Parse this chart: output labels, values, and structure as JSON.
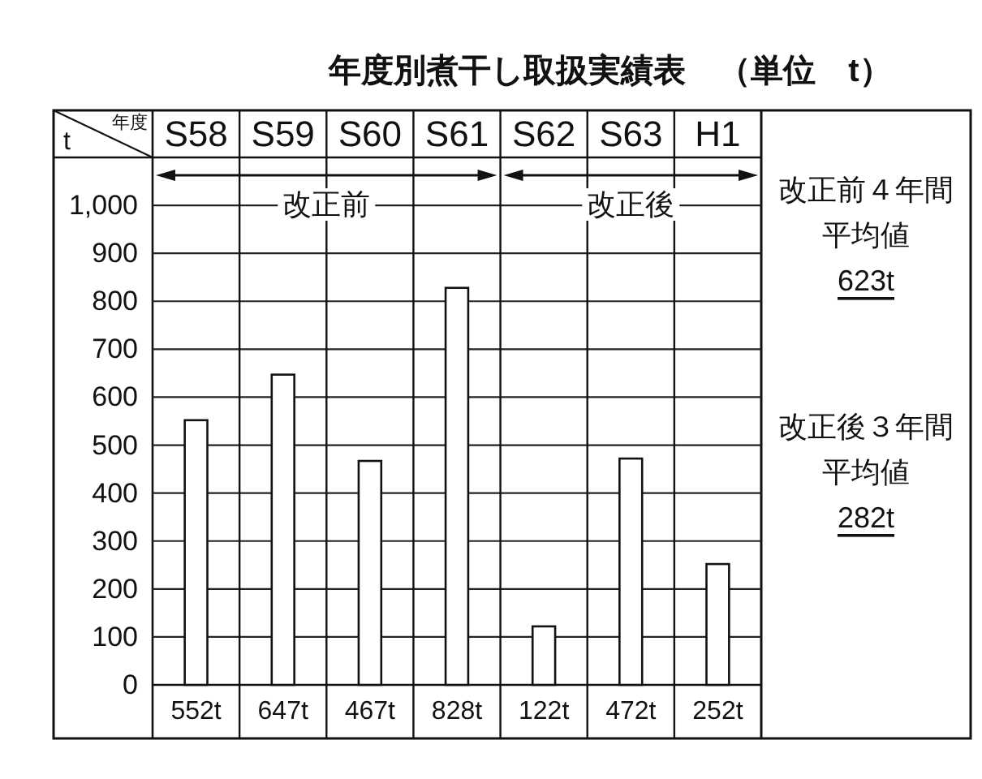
{
  "chart_data": {
    "type": "bar",
    "title": "年度別煮干し取扱実績表　（単位　t）",
    "xlabel": "年度",
    "ylabel": "t",
    "categories": [
      "S58",
      "S59",
      "S60",
      "S61",
      "S62",
      "S63",
      "H1"
    ],
    "values": [
      552,
      647,
      467,
      828,
      122,
      472,
      252
    ],
    "value_labels": [
      "552t",
      "647t",
      "467t",
      "828t",
      "122t",
      "472t",
      "252t"
    ],
    "color": "#ffffff",
    "ylim": [
      0,
      1100
    ],
    "yticks": [
      0,
      100,
      200,
      300,
      400,
      500,
      600,
      700,
      800,
      900,
      {
        "value": 1000,
        "label": "1,000"
      }
    ],
    "grid": true,
    "annotations": [
      "改正前",
      "改正後",
      "改正前４年間平均値",
      "623t",
      "改正後３年間平均値",
      "282t"
    ]
  }
}
